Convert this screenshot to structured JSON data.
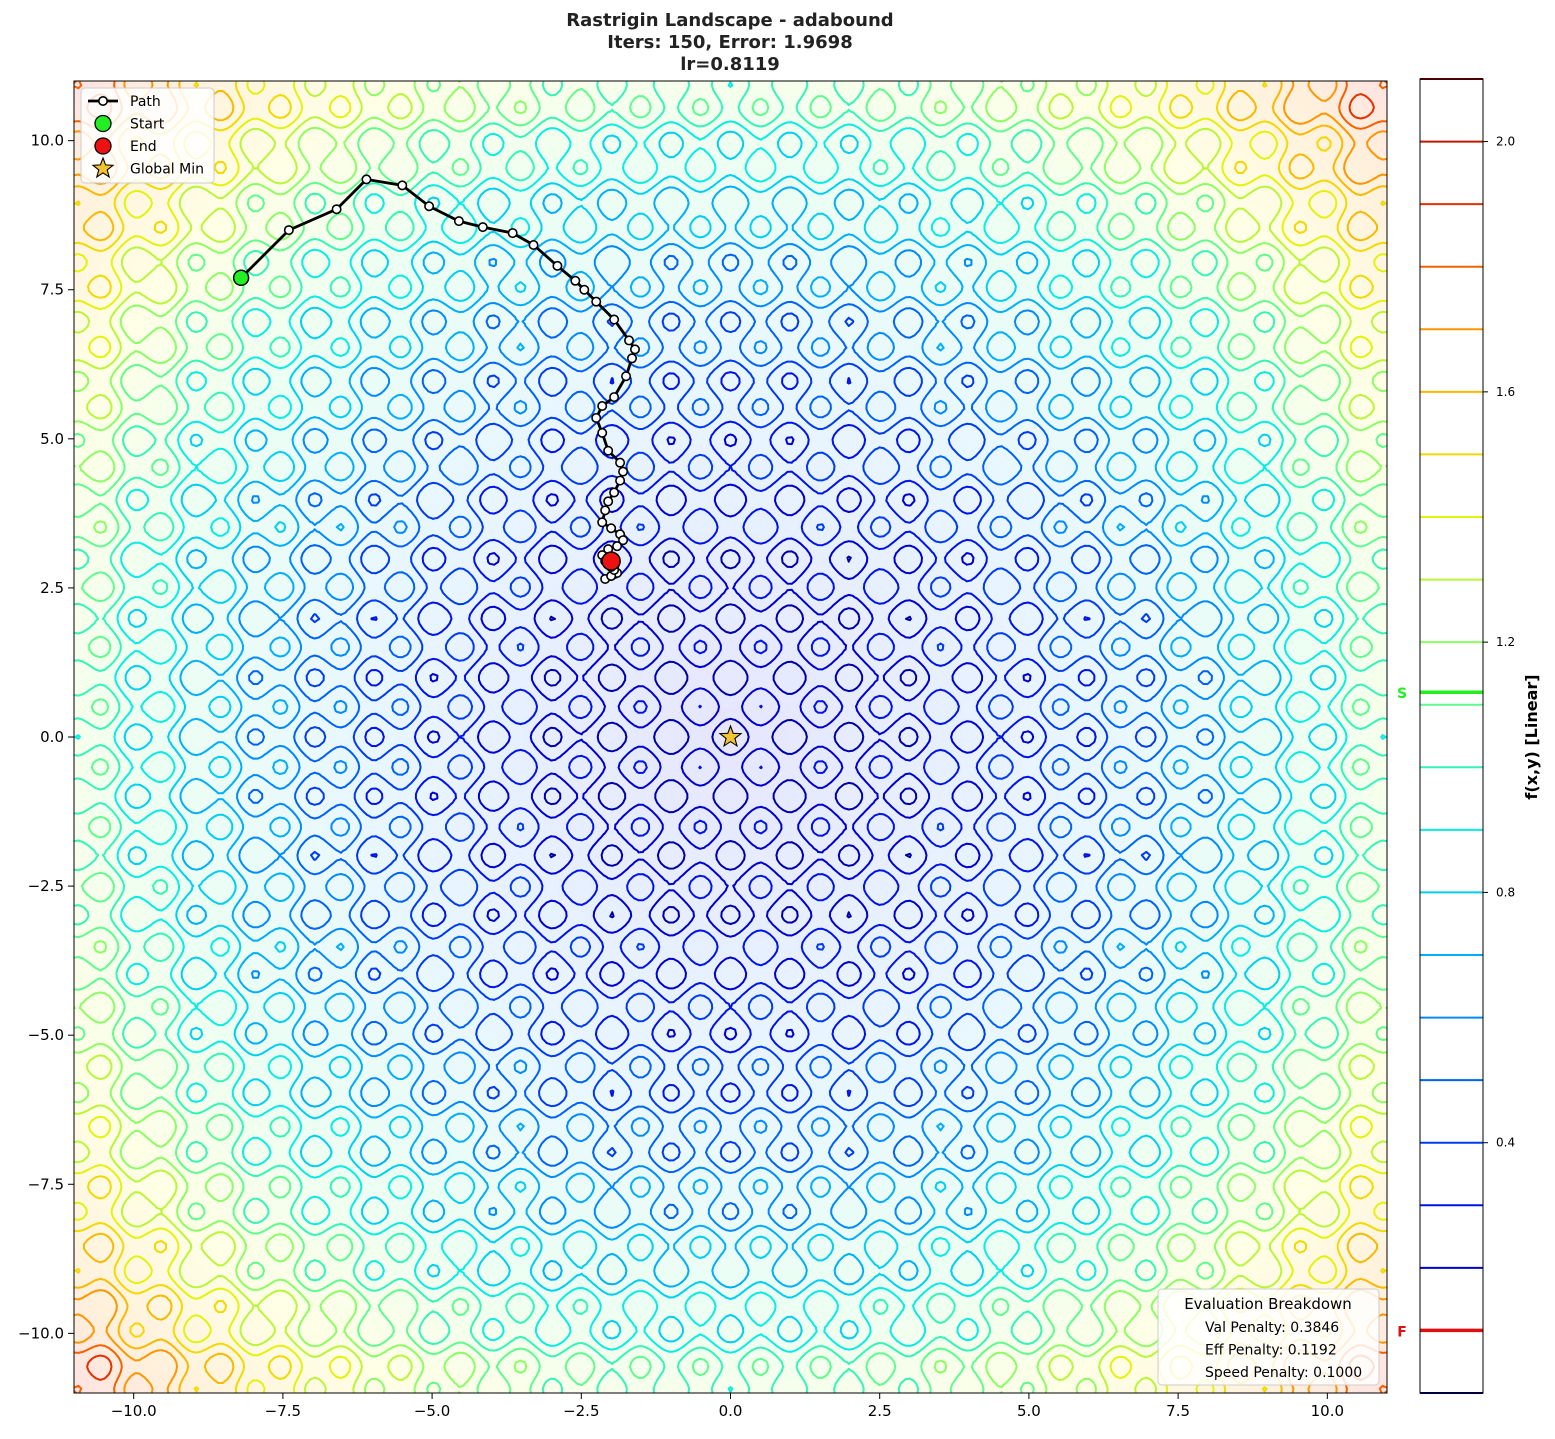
{
  "chart_data": {
    "type": "contour",
    "title": [
      "Rastrigin Landscape - adabound",
      "Iters: 150, Error: 1.9698",
      "lr=0.8119"
    ],
    "xlabel": "",
    "ylabel": "",
    "xlim": [
      -11,
      11
    ],
    "ylim": [
      -11,
      11
    ],
    "x_ticks": [
      -10,
      -7.5,
      -5,
      -2.5,
      0,
      2.5,
      5,
      7.5,
      10
    ],
    "x_tick_labels": [
      "−10.0",
      "−7.5",
      "−5.0",
      "−2.5",
      "0.0",
      "2.5",
      "5.0",
      "7.5",
      "10.0"
    ],
    "y_ticks": [
      10,
      7.5,
      5,
      2.5,
      0,
      -2.5,
      -5,
      -7.5,
      -10
    ],
    "y_tick_labels": [
      "10.0",
      "7.5",
      "5.0",
      "2.5",
      "0.0",
      "−2.5",
      "−5.0",
      "−7.5",
      "−10.0"
    ],
    "grid": false,
    "legend": {
      "placement": "top-left",
      "entries": [
        {
          "label": "Path",
          "marker": "line-circle",
          "color": "#000000"
        },
        {
          "label": "Start",
          "marker": "circle",
          "color": "#22ee22"
        },
        {
          "label": "End",
          "marker": "circle",
          "color": "#ee1111"
        },
        {
          "label": "Global Min",
          "marker": "star",
          "color": "#f2c530"
        }
      ]
    },
    "path": [
      [
        -8.2,
        7.7
      ],
      [
        -7.4,
        8.5
      ],
      [
        -6.6,
        8.85
      ],
      [
        -6.1,
        9.35
      ],
      [
        -5.5,
        9.25
      ],
      [
        -5.05,
        8.9
      ],
      [
        -4.55,
        8.65
      ],
      [
        -4.15,
        8.55
      ],
      [
        -3.65,
        8.45
      ],
      [
        -3.3,
        8.25
      ],
      [
        -2.9,
        7.9
      ],
      [
        -2.6,
        7.65
      ],
      [
        -2.45,
        7.5
      ],
      [
        -2.25,
        7.3
      ],
      [
        -1.95,
        7.0
      ],
      [
        -1.7,
        6.65
      ],
      [
        -1.6,
        6.5
      ],
      [
        -1.65,
        6.35
      ],
      [
        -1.75,
        6.05
      ],
      [
        -1.95,
        5.7
      ],
      [
        -2.15,
        5.55
      ],
      [
        -2.25,
        5.35
      ],
      [
        -2.15,
        5.1
      ],
      [
        -2.05,
        4.8
      ],
      [
        -1.85,
        4.6
      ],
      [
        -1.8,
        4.45
      ],
      [
        -1.85,
        4.3
      ],
      [
        -1.95,
        4.1
      ],
      [
        -2.05,
        3.95
      ],
      [
        -2.1,
        3.8
      ],
      [
        -2.15,
        3.6
      ],
      [
        -2.0,
        3.5
      ],
      [
        -1.85,
        3.4
      ],
      [
        -1.8,
        3.3
      ],
      [
        -1.9,
        3.2
      ],
      [
        -2.05,
        3.15
      ],
      [
        -2.15,
        3.05
      ],
      [
        -2.1,
        2.95
      ],
      [
        -1.95,
        2.85
      ],
      [
        -1.9,
        2.75
      ],
      [
        -2.0,
        2.7
      ],
      [
        -2.1,
        2.65
      ],
      [
        -2.0,
        2.7
      ],
      [
        -1.95,
        2.8
      ],
      [
        -2.0,
        2.85
      ],
      [
        -2.0,
        2.95
      ]
    ],
    "start": [
      -8.2,
      7.7
    ],
    "end": [
      -2.0,
      2.95
    ],
    "global_min": [
      0.0,
      0.0
    ],
    "colorbar": {
      "label": "f(x,y) [Linear]",
      "range": [
        0.0,
        2.1
      ],
      "ticks": [
        0.4,
        0.8,
        1.2,
        1.6,
        2.0
      ],
      "tick_labels": [
        "0.4",
        "0.8",
        "1.2",
        "1.6",
        "2.0"
      ],
      "levels": [
        0.1,
        0.2,
        0.3,
        0.4,
        0.5,
        0.6,
        0.7,
        0.8,
        0.9,
        1.0,
        1.1,
        1.2,
        1.3,
        1.4,
        1.5,
        1.6,
        1.7,
        1.8,
        1.9,
        2.0
      ],
      "markers": [
        {
          "label": "S",
          "value": 1.12,
          "color": "#22ee22"
        },
        {
          "label": "F",
          "value": 0.1,
          "color": "#dd1111"
        }
      ]
    },
    "info_box": {
      "title": "Evaluation Breakdown",
      "lines": [
        "Val Penalty: 0.3846",
        "Eff Penalty: 0.1192",
        "Speed Penalty: 0.1000"
      ],
      "placement": "bottom-right"
    }
  }
}
